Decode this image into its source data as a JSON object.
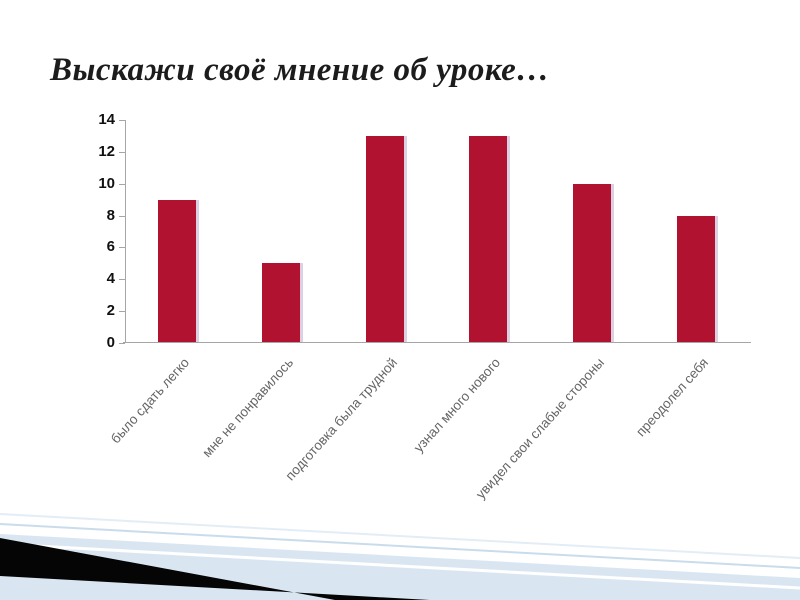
{
  "slide": {
    "title": "Выскажи своё мнение об уроке…"
  },
  "chart_data": {
    "type": "bar",
    "categories": [
      "было сдать легко",
      "мне не понравилось",
      "подготовка была трудной",
      "узнал много нового",
      "увидел свои слабые стороны",
      "преодолел себя"
    ],
    "values": [
      9,
      5,
      13,
      13,
      10,
      8
    ],
    "title": "",
    "xlabel": "",
    "ylabel": "",
    "ylim": [
      0,
      14
    ],
    "yticks": [
      0,
      2,
      4,
      6,
      8,
      10,
      12,
      14
    ],
    "bar_color": "#b1122f",
    "grid": false,
    "legend": "none",
    "x_label_rotation_deg": -48
  },
  "colors": {
    "bar": "#b1122f",
    "axis": "#a6a6a6",
    "title_text": "#1c1c1c",
    "x_label_text": "#646464",
    "deco_blue": "#d9e6f2",
    "deco_black": "#000000"
  }
}
